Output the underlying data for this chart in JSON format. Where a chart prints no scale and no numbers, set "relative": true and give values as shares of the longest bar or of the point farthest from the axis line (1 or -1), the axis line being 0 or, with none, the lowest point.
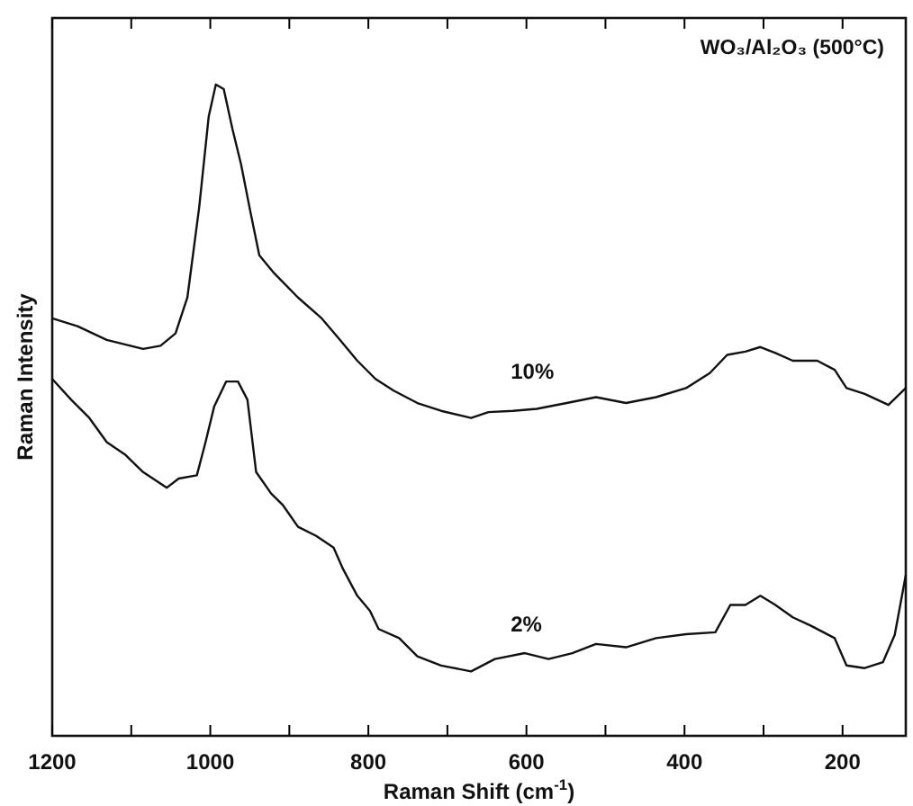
{
  "chart_data": {
    "type": "line",
    "title": "WO₃/Al₂O₃ (500°C)",
    "xlabel": "Raman Shift (cm$^{-1}$)",
    "ylabel": "Raman Intensity",
    "relative": true,
    "line_style": "solid",
    "xlim": [
      1200,
      120
    ],
    "xticks": [
      1200,
      {
        "value": 1100,
        "label": null
      },
      1000,
      {
        "value": 900,
        "label": null
      },
      800,
      {
        "value": 700,
        "label": null
      },
      600,
      {
        "value": 500,
        "label": null
      },
      400,
      {
        "value": 300,
        "label": null
      },
      200
    ],
    "series": [
      {
        "name": "10%",
        "color": "#111111",
        "x": [
          1200,
          1168,
          1131,
          1085,
          1063,
          1044,
          1029,
          1014,
          1002,
          993,
          983,
          972,
          961,
          949,
          938,
          919,
          889,
          859,
          836,
          814,
          791,
          768,
          738,
          708,
          670,
          648,
          617,
          587,
          549,
          512,
          474,
          436,
          398,
          368,
          346,
          323,
          304,
          285,
          263,
          232,
          210,
          195,
          172,
          142,
          120
        ],
        "values": [
          0.641,
          0.629,
          0.608,
          0.594,
          0.599,
          0.618,
          0.673,
          0.812,
          0.951,
          1.0,
          0.993,
          0.932,
          0.877,
          0.803,
          0.738,
          0.71,
          0.673,
          0.641,
          0.608,
          0.576,
          0.548,
          0.53,
          0.511,
          0.499,
          0.488,
          0.497,
          0.499,
          0.502,
          0.511,
          0.52,
          0.511,
          0.52,
          0.534,
          0.557,
          0.585,
          0.59,
          0.597,
          0.588,
          0.576,
          0.576,
          0.562,
          0.534,
          0.525,
          0.508,
          0.534
        ]
      },
      {
        "name": "2%",
        "color": "#111111",
        "x": [
          1200,
          1176,
          1153,
          1131,
          1108,
          1085,
          1055,
          1040,
          1017,
          1006,
          995,
          980,
          965,
          953,
          942,
          923,
          908,
          889,
          866,
          844,
          832,
          814,
          798,
          787,
          761,
          738,
          708,
          670,
          640,
          602,
          572,
          542,
          512,
          474,
          436,
          398,
          361,
          342,
          323,
          304,
          285,
          263,
          240,
          210,
          195,
          172,
          149,
          134,
          120
        ],
        "values": [
          0.548,
          0.516,
          0.488,
          0.451,
          0.432,
          0.405,
          0.381,
          0.395,
          0.4,
          0.451,
          0.506,
          0.544,
          0.544,
          0.516,
          0.405,
          0.372,
          0.354,
          0.321,
          0.307,
          0.289,
          0.256,
          0.215,
          0.192,
          0.164,
          0.15,
          0.122,
          0.108,
          0.099,
          0.118,
          0.127,
          0.118,
          0.127,
          0.141,
          0.136,
          0.15,
          0.156,
          0.159,
          0.201,
          0.201,
          0.215,
          0.201,
          0.182,
          0.169,
          0.15,
          0.108,
          0.104,
          0.113,
          0.155,
          0.247
        ]
      }
    ]
  }
}
